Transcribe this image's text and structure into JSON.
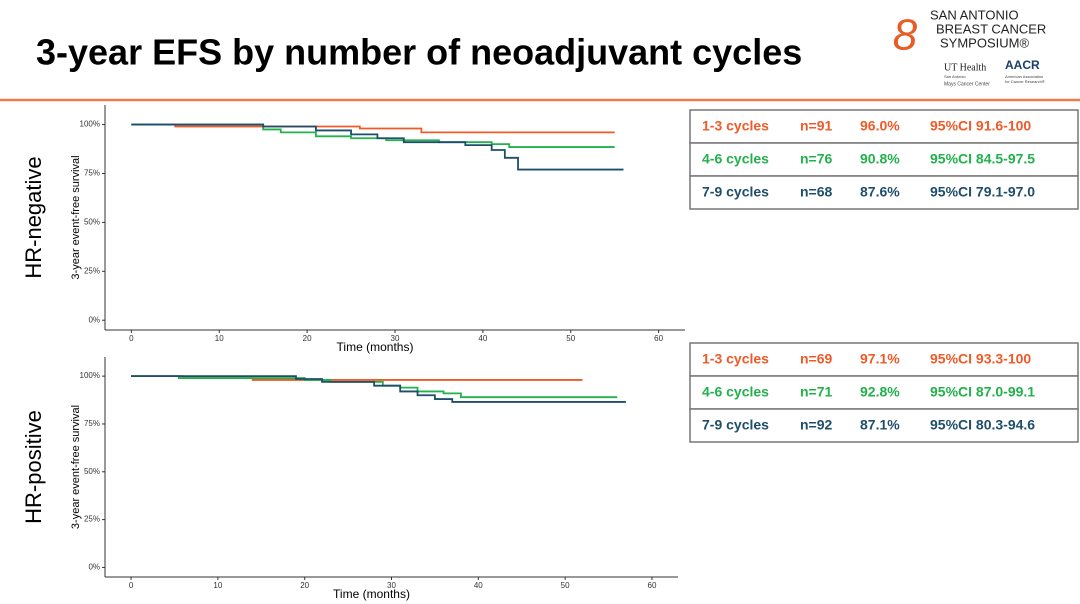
{
  "title": "3-year EFS by number of neoadjuvant cycles",
  "logo": {
    "name": [
      "SAN ANTONIO",
      "BREAST CANCER",
      "SYMPOSIUM®"
    ],
    "ut": "UT Health",
    "ut_sub": [
      "San Antonio",
      "Mays Cancer Center"
    ],
    "aacr": "AACR",
    "aacr_sub": [
      "American Association",
      "for Cancer Research®"
    ]
  },
  "chart_data": [
    {
      "type": "line",
      "step": true,
      "panel_label": "HR-negative",
      "xlabel": "Time (months)",
      "ylabel": "3-year event-free survival",
      "xlim": [
        -3,
        63
      ],
      "xticks": [
        0,
        10,
        20,
        30,
        40,
        50,
        60
      ],
      "ylim": [
        -5,
        110
      ],
      "yticks": [
        {
          "value": 0,
          "label": "0%"
        },
        {
          "value": 25,
          "label": "25%"
        },
        {
          "value": 50,
          "label": "50%"
        },
        {
          "value": 75,
          "label": "75%"
        },
        {
          "value": 100,
          "label": "100%"
        }
      ],
      "series": [
        {
          "name": "1-3 cycles",
          "color": "#f05a28",
          "x": [
            0,
            5,
            26,
            33,
            55
          ],
          "values": [
            100,
            99,
            98,
            96,
            96
          ],
          "table": [
            "n=91",
            "96.0%",
            "95%CI 91.6-100"
          ]
        },
        {
          "name": "4-6 cycles",
          "color": "#22b14c",
          "x": [
            0,
            15,
            17,
            21,
            25,
            29,
            35,
            41,
            43,
            55
          ],
          "values": [
            100,
            97.5,
            96,
            94,
            93,
            92,
            91,
            90,
            88.5,
            88.5
          ],
          "table": [
            "n=76",
            "90.8%",
            "95%CI 84.5-97.5"
          ]
        },
        {
          "name": "7-9 cycles",
          "color": "#1f4e6b",
          "x": [
            0,
            15,
            21,
            25,
            28,
            31,
            38,
            41,
            42.5,
            44,
            56
          ],
          "values": [
            100,
            99,
            97,
            95,
            93,
            91,
            89.5,
            87,
            83,
            77,
            77
          ],
          "table": [
            "n=68",
            "87.6%",
            "95%CI 79.1-97.0"
          ]
        }
      ]
    },
    {
      "type": "line",
      "step": true,
      "panel_label": "HR-positive",
      "xlabel": "Time (months)",
      "ylabel": "3-year event-free survival",
      "xlim": [
        -3,
        63
      ],
      "xticks": [
        0,
        10,
        20,
        30,
        40,
        50,
        60
      ],
      "ylim": [
        -5,
        110
      ],
      "yticks": [
        {
          "value": 0,
          "label": "0%"
        },
        {
          "value": 25,
          "label": "25%"
        },
        {
          "value": 50,
          "label": "50%"
        },
        {
          "value": 75,
          "label": "75%"
        },
        {
          "value": 100,
          "label": "100%"
        }
      ],
      "series": [
        {
          "name": "1-3 cycles",
          "color": "#f05a28",
          "x": [
            0,
            6,
            14,
            52
          ],
          "values": [
            100,
            99,
            98,
            98
          ],
          "table": [
            "n=69",
            "97.1%",
            "95%CI 93.3-100"
          ]
        },
        {
          "name": "4-6 cycles",
          "color": "#22b14c",
          "x": [
            0,
            5.5,
            20,
            23,
            29,
            31,
            33,
            36,
            38,
            56
          ],
          "values": [
            100,
            99,
            98,
            97,
            95,
            94,
            92,
            91,
            89,
            89
          ],
          "table": [
            "n=71",
            "92.8%",
            "95%CI 87.0-99.1"
          ]
        },
        {
          "name": "7-9 cycles",
          "color": "#1f4e6b",
          "x": [
            0,
            19,
            22,
            28,
            31,
            33,
            35,
            37,
            57
          ],
          "values": [
            100,
            98.5,
            97,
            95,
            92,
            90,
            88,
            86.5,
            86.5
          ],
          "table": [
            "n=92",
            "87.1%",
            "95%CI 80.3-94.6"
          ]
        }
      ]
    }
  ]
}
